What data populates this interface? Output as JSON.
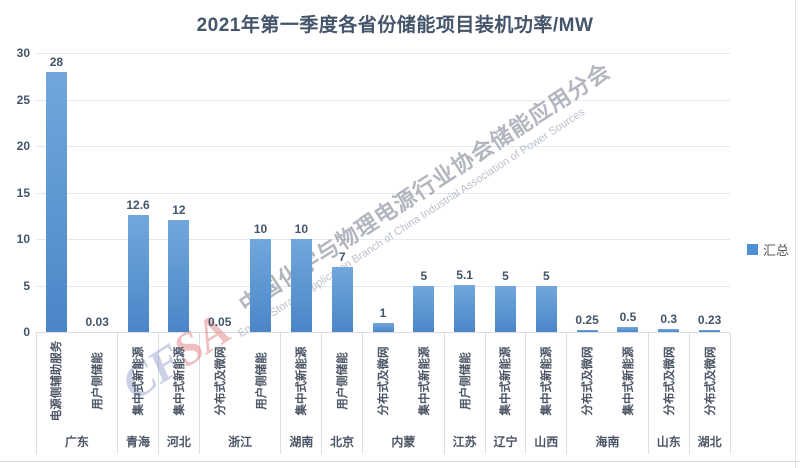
{
  "title": "2021年第一季度各省份储能项目装机功率/MW",
  "legend": {
    "label": "汇总",
    "swatch_color": "#4E8ED2"
  },
  "watermark": {
    "logo": "CFSA",
    "cn": "中国化学与物理电源行业协会储能应用分会",
    "en": "Energy Storage Application Branch of China Industrial Association of Power Sources"
  },
  "colors": {
    "bar_top": "#72A7DD",
    "bar_bottom": "#4A86C8",
    "title_text": "#44546A",
    "axis_text": "#44546A",
    "gridline": "#E3E9F0"
  },
  "chart_data": {
    "type": "bar",
    "title": "2021年第一季度各省份储能项目装机功率/MW",
    "xlabel": "",
    "ylabel": "",
    "ylim": [
      0,
      30
    ],
    "yticks": [
      0,
      5,
      10,
      15,
      20,
      25,
      30
    ],
    "grid": true,
    "legend_position": "right",
    "series": [
      {
        "name": "汇总",
        "points": [
          {
            "province": "广东",
            "category": "电源侧辅助服务",
            "value": 28
          },
          {
            "province": "广东",
            "category": "用户侧储能",
            "value": 0.03
          },
          {
            "province": "青海",
            "category": "集中式新能源",
            "value": 12.6
          },
          {
            "province": "河北",
            "category": "集中式新能源",
            "value": 12
          },
          {
            "province": "浙江",
            "category": "分布式及微网",
            "value": 0.05
          },
          {
            "province": "浙江",
            "category": "用户侧储能",
            "value": 10
          },
          {
            "province": "湖南",
            "category": "集中式新能源",
            "value": 10
          },
          {
            "province": "北京",
            "category": "用户侧储能",
            "value": 7
          },
          {
            "province": "内蒙",
            "category": "分布式及微网",
            "value": 1
          },
          {
            "province": "内蒙",
            "category": "集中式新能源",
            "value": 5
          },
          {
            "province": "江苏",
            "category": "用户侧储能",
            "value": 5.1
          },
          {
            "province": "辽宁",
            "category": "集中式新能源",
            "value": 5
          },
          {
            "province": "山西",
            "category": "集中式新能源",
            "value": 5
          },
          {
            "province": "海南",
            "category": "分布式及微网",
            "value": 0.25
          },
          {
            "province": "海南",
            "category": "集中式新能源",
            "value": 0.5
          },
          {
            "province": "山东",
            "category": "分布式及微网",
            "value": 0.3
          },
          {
            "province": "湖北",
            "category": "分布式及微网",
            "value": 0.23
          }
        ]
      }
    ]
  }
}
